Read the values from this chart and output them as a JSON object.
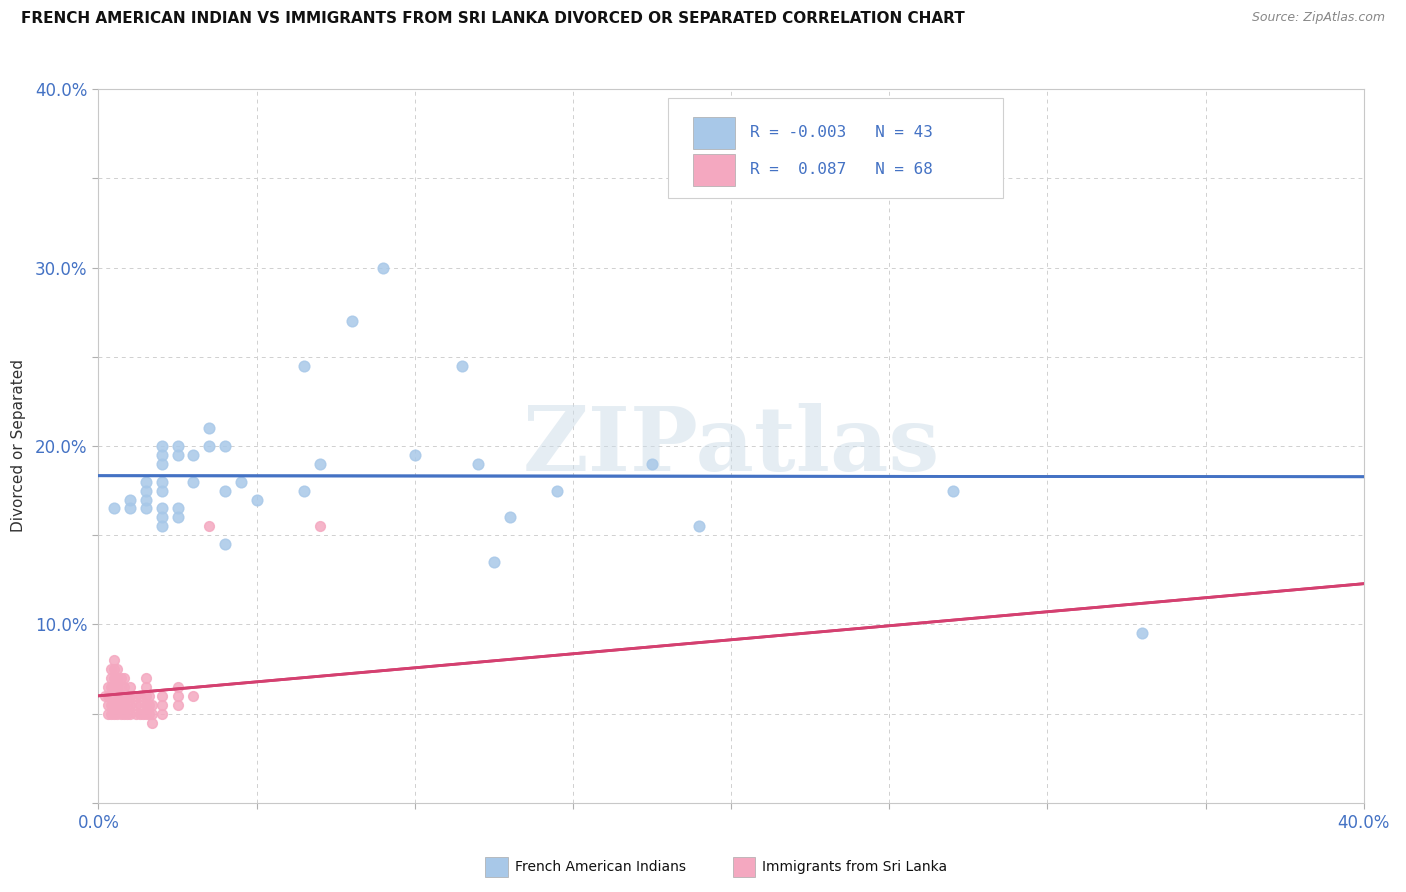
{
  "title": "FRENCH AMERICAN INDIAN VS IMMIGRANTS FROM SRI LANKA DIVORCED OR SEPARATED CORRELATION CHART",
  "source": "Source: ZipAtlas.com",
  "ylabel": "Divorced or Separated",
  "xlim": [
    0.0,
    0.4
  ],
  "ylim": [
    0.0,
    0.4
  ],
  "blue_color": "#a8c8e8",
  "pink_color": "#f4a8c0",
  "blue_line_color": "#4472c4",
  "pink_line_color": "#d44070",
  "label_color": "#4472c4",
  "watermark": "ZIPatlas",
  "blue_R": -0.003,
  "blue_N": 43,
  "pink_R": 0.087,
  "pink_N": 68,
  "blue_legend": "French American Indians",
  "pink_legend": "Immigrants from Sri Lanka",
  "blue_scatter_x": [
    0.005,
    0.01,
    0.01,
    0.015,
    0.015,
    0.015,
    0.015,
    0.02,
    0.02,
    0.02,
    0.02,
    0.02,
    0.02,
    0.02,
    0.02,
    0.025,
    0.025,
    0.025,
    0.025,
    0.03,
    0.03,
    0.035,
    0.035,
    0.04,
    0.04,
    0.04,
    0.045,
    0.05,
    0.065,
    0.065,
    0.07,
    0.08,
    0.09,
    0.1,
    0.115,
    0.12,
    0.125,
    0.13,
    0.145,
    0.175,
    0.19,
    0.27,
    0.33
  ],
  "blue_scatter_y": [
    0.165,
    0.165,
    0.17,
    0.165,
    0.17,
    0.175,
    0.18,
    0.155,
    0.16,
    0.165,
    0.175,
    0.18,
    0.19,
    0.195,
    0.2,
    0.16,
    0.165,
    0.195,
    0.2,
    0.18,
    0.195,
    0.2,
    0.21,
    0.145,
    0.175,
    0.2,
    0.18,
    0.17,
    0.245,
    0.175,
    0.19,
    0.27,
    0.3,
    0.195,
    0.245,
    0.19,
    0.135,
    0.16,
    0.175,
    0.19,
    0.155,
    0.175,
    0.095
  ],
  "pink_scatter_x": [
    0.002,
    0.003,
    0.003,
    0.003,
    0.003,
    0.004,
    0.004,
    0.004,
    0.004,
    0.004,
    0.004,
    0.005,
    0.005,
    0.005,
    0.005,
    0.005,
    0.005,
    0.005,
    0.006,
    0.006,
    0.006,
    0.006,
    0.006,
    0.006,
    0.007,
    0.007,
    0.007,
    0.007,
    0.007,
    0.008,
    0.008,
    0.008,
    0.008,
    0.008,
    0.009,
    0.009,
    0.009,
    0.01,
    0.01,
    0.01,
    0.01,
    0.012,
    0.012,
    0.012,
    0.013,
    0.013,
    0.013,
    0.014,
    0.015,
    0.015,
    0.015,
    0.015,
    0.015,
    0.016,
    0.016,
    0.016,
    0.017,
    0.017,
    0.017,
    0.02,
    0.02,
    0.02,
    0.025,
    0.025,
    0.025,
    0.03,
    0.035,
    0.07
  ],
  "pink_scatter_y": [
    0.06,
    0.05,
    0.055,
    0.06,
    0.065,
    0.05,
    0.055,
    0.06,
    0.065,
    0.07,
    0.075,
    0.05,
    0.055,
    0.06,
    0.065,
    0.07,
    0.075,
    0.08,
    0.05,
    0.055,
    0.06,
    0.065,
    0.07,
    0.075,
    0.05,
    0.055,
    0.06,
    0.065,
    0.07,
    0.05,
    0.055,
    0.06,
    0.065,
    0.07,
    0.05,
    0.055,
    0.06,
    0.05,
    0.055,
    0.06,
    0.065,
    0.05,
    0.055,
    0.06,
    0.05,
    0.055,
    0.06,
    0.05,
    0.05,
    0.055,
    0.06,
    0.065,
    0.07,
    0.05,
    0.055,
    0.06,
    0.045,
    0.05,
    0.055,
    0.05,
    0.055,
    0.06,
    0.055,
    0.06,
    0.065,
    0.06,
    0.155,
    0.155
  ]
}
